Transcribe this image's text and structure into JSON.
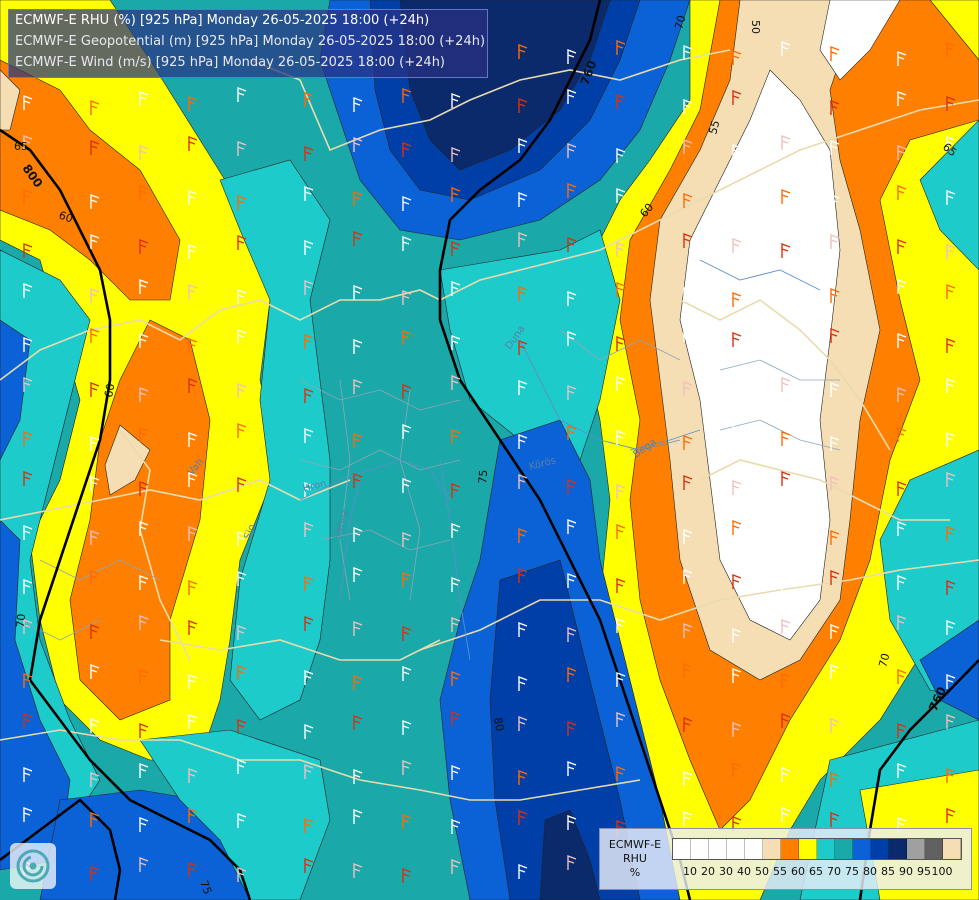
{
  "header": {
    "line1": "ECMWF-E RHU (%) [925 hPa] Monday 26-05-2025 18:00 (+24h)",
    "line2": "ECMWF-E Geopotential (m) [925 hPa] Monday 26-05-2025 18:00 (+24h)",
    "line3": "ECMWF-E Wind (m/s) [925 hPa] Monday 26-05-2025 18:00 (+24h)"
  },
  "contour_labels": {
    "rhu": [
      "50",
      "70",
      "65",
      "55",
      "60",
      "65",
      "60",
      "60",
      "80",
      "75",
      "70",
      "70",
      "75"
    ],
    "geopotential": [
      "760",
      "800",
      "760"
    ]
  },
  "river_labels": [
    "Vah",
    "Sio",
    "Hron",
    "Sarvíz",
    "Duna",
    "Körös",
    "Bega"
  ],
  "legend": {
    "title_lines": [
      "ECMWF-E",
      "RHU",
      "%"
    ],
    "colors": [
      "#ffffff",
      "#ffffff",
      "#ffffff",
      "#ffffff",
      "#ffffff",
      "#f5deb3",
      "#ff8000",
      "#ffff00",
      "#1ecbcb",
      "#1aa8a8",
      "#0a62d6",
      "#003fa8",
      "#0a2a6b",
      "#a0a0a0",
      "#606060",
      "#f5deb3"
    ],
    "ticks": [
      "10",
      "20",
      "30",
      "40",
      "50",
      "55",
      "60",
      "65",
      "70",
      "75",
      "80",
      "85",
      "90",
      "95",
      "100"
    ]
  },
  "colors": {
    "white": "#ffffff",
    "tan": "#f5deb3",
    "orange": "#ff8000",
    "yellow": "#ffff00",
    "cyan": "#1ecbcb",
    "teal": "#1aa8a8",
    "blue": "#0a62d6",
    "darkblue": "#003fa8",
    "navy": "#0a2a6b"
  },
  "icons": {
    "logo": "ecmwf-swirl-logo"
  }
}
